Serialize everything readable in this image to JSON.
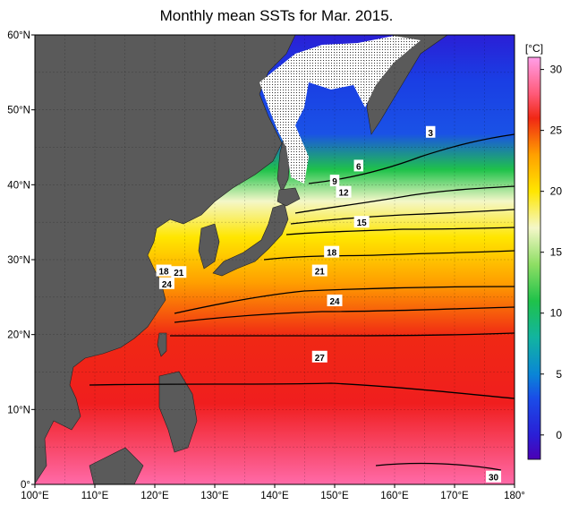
{
  "title": "Monthly mean SSTs for Mar. 2015.",
  "map": {
    "lon_range": [
      100,
      180
    ],
    "lat_range": [
      0,
      60
    ],
    "lon_ticks": [
      "100°E",
      "110°E",
      "120°E",
      "130°E",
      "140°E",
      "150°E",
      "160°E",
      "170°E",
      "180°"
    ],
    "lat_ticks": [
      "0°",
      "10°N",
      "20°N",
      "30°N",
      "40°N",
      "50°N",
      "60°N"
    ],
    "colors": {
      "land": "#5a5a5a",
      "sea_ice": "#ffffff",
      "isotherm": "#000000"
    }
  },
  "colorbar": {
    "unit": "[°C]",
    "ticks": [
      "30",
      "25",
      "20",
      "15",
      "10",
      "5",
      "0"
    ],
    "range": [
      -2,
      31
    ],
    "stops": [
      {
        "value": -2,
        "color": "#4b00b4"
      },
      {
        "value": 0,
        "color": "#2a1fd6"
      },
      {
        "value": 3,
        "color": "#1a4ce8"
      },
      {
        "value": 5,
        "color": "#0a86d6"
      },
      {
        "value": 8,
        "color": "#12b4a0"
      },
      {
        "value": 11,
        "color": "#1fc24a"
      },
      {
        "value": 14,
        "color": "#8ede64"
      },
      {
        "value": 17,
        "color": "#f4f7c8"
      },
      {
        "value": 20,
        "color": "#ffe600"
      },
      {
        "value": 23,
        "color": "#ffa000"
      },
      {
        "value": 26,
        "color": "#f02814"
      },
      {
        "value": 28,
        "color": "#ff5a78"
      },
      {
        "value": 31,
        "color": "#ff9ee8"
      }
    ]
  },
  "contour_labels": [
    {
      "text": "3",
      "lon": 166,
      "lat": 47
    },
    {
      "text": "6",
      "lon": 154,
      "lat": 42.5
    },
    {
      "text": "9",
      "lon": 150,
      "lat": 40.5
    },
    {
      "text": "12",
      "lon": 151.5,
      "lat": 39
    },
    {
      "text": "15",
      "lon": 154.5,
      "lat": 35
    },
    {
      "text": "18",
      "lon": 149.5,
      "lat": 31
    },
    {
      "text": "21",
      "lon": 147.5,
      "lat": 28.5
    },
    {
      "text": "24",
      "lon": 150,
      "lat": 24.5
    },
    {
      "text": "27",
      "lon": 147.5,
      "lat": 17
    },
    {
      "text": "30",
      "lon": 176.5,
      "lat": 1
    },
    {
      "text": "18",
      "lon": 121.5,
      "lat": 28.5
    },
    {
      "text": "21",
      "lon": 124,
      "lat": 28.3
    },
    {
      "text": "24",
      "lon": 122,
      "lat": 26.8
    }
  ]
}
